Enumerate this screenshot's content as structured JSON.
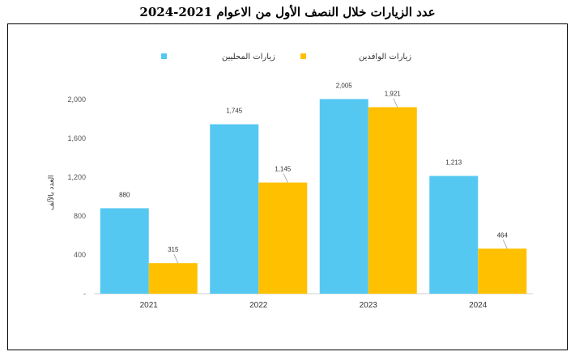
{
  "chart_data": {
    "type": "bar",
    "title": "عدد الزيارات خلال النصف الأول من الاعوام 2021-2024",
    "ylabel": "العدد بالآلف",
    "xlabel": "",
    "categories": [
      "2021",
      "2022",
      "2023",
      "2024"
    ],
    "series": [
      {
        "name": "زيارات المحليين",
        "values": [
          880,
          1745,
          2005,
          1213
        ],
        "color": "#55C8F2"
      },
      {
        "name": "زيارات الوافدين",
        "values": [
          315,
          1145,
          1921,
          464
        ],
        "color": "#FFC000"
      }
    ],
    "data_labels": [
      [
        "880",
        "1,745",
        "2,005",
        "1,213"
      ],
      [
        "315",
        "1,145",
        "1,921",
        "464"
      ]
    ],
    "yticks": [
      0,
      400,
      800,
      1200,
      1600,
      2000
    ],
    "ytick_labels": [
      "-",
      "400",
      "800",
      "1,200",
      "1,600",
      "2,000"
    ],
    "ylim": [
      0,
      2100
    ],
    "grid": false,
    "legend": "top-center"
  }
}
